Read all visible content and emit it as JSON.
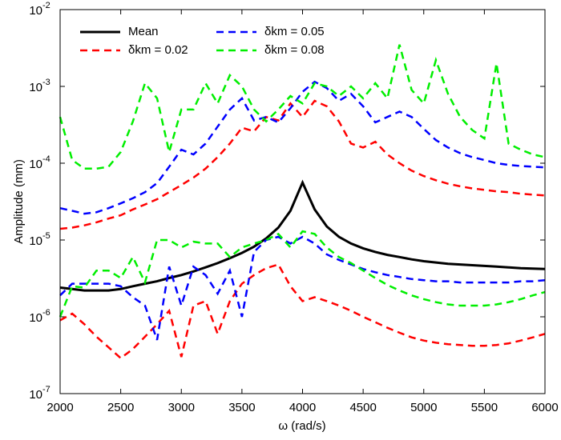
{
  "chart_data": {
    "type": "line",
    "x_label": "ω (rad/s)",
    "y_label": "Amplitude (mm)",
    "log_y": true,
    "xlim": [
      2000,
      6000
    ],
    "xticks": [
      2000,
      2500,
      3000,
      3500,
      4000,
      4500,
      5000,
      5500,
      6000
    ],
    "ylim": [
      1e-07,
      0.01
    ],
    "yticks": [
      {
        "value": 1e-07,
        "label": "10",
        "exponent": "-7"
      },
      {
        "value": 1e-06,
        "label": "10",
        "exponent": "-6"
      },
      {
        "value": 1e-05,
        "label": "10",
        "exponent": "-5"
      },
      {
        "value": 0.0001,
        "label": "10",
        "exponent": "-4"
      },
      {
        "value": 0.001,
        "label": "10",
        "exponent": "-3"
      },
      {
        "value": 0.01,
        "label": "10",
        "exponent": "-2"
      }
    ],
    "x": [
      2000,
      2100,
      2200,
      2300,
      2400,
      2500,
      2600,
      2700,
      2800,
      2900,
      3000,
      3100,
      3200,
      3300,
      3400,
      3500,
      3600,
      3700,
      3800,
      3900,
      4000,
      4100,
      4200,
      4300,
      4400,
      4500,
      4600,
      4700,
      4800,
      4900,
      5000,
      5100,
      5200,
      5300,
      5400,
      5500,
      5600,
      5700,
      5800,
      5900,
      6000
    ],
    "series": [
      {
        "name": "Mean",
        "color": "#000000",
        "dashed": false,
        "values": [
          2.4e-06,
          2.3e-06,
          2.2e-06,
          2.2e-06,
          2.2e-06,
          2.3e-06,
          2.5e-06,
          2.7e-06,
          2.9e-06,
          3.2e-06,
          3.5e-06,
          3.9e-06,
          4.4e-06,
          5e-06,
          5.8e-06,
          6.8e-06,
          8.2e-06,
          1.05e-05,
          1.45e-05,
          2.4e-05,
          5.6e-05,
          2.5e-05,
          1.5e-05,
          1.1e-05,
          9e-06,
          7.8e-06,
          7e-06,
          6.4e-06,
          6e-06,
          5.6e-06,
          5.3e-06,
          5.1e-06,
          4.9e-06,
          4.8e-06,
          4.7e-06,
          4.6e-06,
          4.5e-06,
          4.4e-06,
          4.3e-06,
          4.25e-06,
          4.2e-06
        ]
      },
      {
        "name": "δkm = 0.02",
        "color": "#ff0000",
        "dashed": true,
        "values": [
          1.4e-05,
          1.45e-05,
          1.55e-05,
          1.7e-05,
          1.9e-05,
          2.1e-05,
          2.5e-05,
          2.9e-05,
          3.4e-05,
          4.2e-05,
          5.2e-05,
          6.5e-05,
          8.5e-05,
          0.00012,
          0.00018,
          0.00029,
          0.00026,
          0.0004,
          0.00036,
          0.0006,
          0.0004,
          0.00065,
          0.00055,
          0.00035,
          0.00018,
          0.00016,
          0.00019,
          0.00013,
          0.0001,
          8e-05,
          6.8e-05,
          6e-05,
          5.4e-05,
          5e-05,
          4.7e-05,
          4.5e-05,
          4.3e-05,
          4.2e-05,
          4e-05,
          3.9e-05,
          3.8e-05
        ],
        "lower": [
          9e-07,
          1.1e-06,
          8e-07,
          5.5e-07,
          4e-07,
          2.9e-07,
          3.8e-07,
          5.5e-07,
          8e-07,
          1.2e-06,
          3e-07,
          1.4e-06,
          1.6e-06,
          6e-07,
          1.6e-06,
          2.7e-06,
          3.5e-06,
          4.3e-06,
          4.8e-06,
          2.5e-06,
          1.6e-06,
          1.8e-06,
          1.6e-06,
          1.4e-06,
          1.2e-06,
          1e-06,
          8.5e-07,
          7.2e-07,
          6.2e-07,
          5.4e-07,
          4.9e-07,
          4.6e-07,
          4.4e-07,
          4.3e-07,
          4.2e-07,
          4.2e-07,
          4.3e-07,
          4.5e-07,
          4.9e-07,
          5.4e-07,
          6e-07
        ]
      },
      {
        "name": "δkm = 0.05",
        "color": "#0000ff",
        "dashed": true,
        "values": [
          2.6e-05,
          2.4e-05,
          2.2e-05,
          2.3e-05,
          2.6e-05,
          3e-05,
          3.5e-05,
          4.2e-05,
          5.5e-05,
          9e-05,
          0.00015,
          0.00013,
          0.00018,
          0.0003,
          0.0005,
          0.0007,
          0.00036,
          0.0004,
          0.00034,
          0.00052,
          0.00085,
          0.00115,
          0.00095,
          0.00065,
          0.0008,
          0.00055,
          0.00034,
          0.0004,
          0.00047,
          0.0004,
          0.00028,
          0.0002,
          0.00016,
          0.000135,
          0.00012,
          0.00011,
          0.0001,
          9.5e-05,
          9.2e-05,
          9e-05,
          8.8e-05
        ],
        "lower": [
          1.9e-06,
          2.7e-06,
          2.7e-06,
          2.7e-06,
          2.7e-06,
          2.5e-06,
          1.8e-06,
          1.4e-06,
          5e-07,
          4.5e-06,
          1.4e-06,
          4.5e-06,
          3.5e-06,
          2e-06,
          4e-06,
          1e-06,
          7e-06,
          1e-05,
          1.1e-05,
          9e-06,
          1.1e-05,
          9e-06,
          6.5e-06,
          5.5e-06,
          4.8e-06,
          4.2e-06,
          3.8e-06,
          3.5e-06,
          3.3e-06,
          3.1e-06,
          3e-06,
          2.9e-06,
          2.9e-06,
          2.8e-06,
          2.8e-06,
          2.8e-06,
          2.8e-06,
          2.8e-06,
          2.9e-06,
          2.9e-06,
          3e-06
        ]
      },
      {
        "name": "δkm = 0.08",
        "color": "#00ee00",
        "dashed": true,
        "values": [
          0.0004,
          0.00011,
          8.5e-05,
          8.5e-05,
          9e-05,
          0.00014,
          0.00035,
          0.0011,
          0.0007,
          0.00014,
          0.0005,
          0.0005,
          0.0011,
          0.0006,
          0.0014,
          0.001,
          0.0005,
          0.00035,
          0.0005,
          0.00075,
          0.0006,
          0.0011,
          0.001,
          0.00075,
          0.001,
          0.0007,
          0.0011,
          0.0007,
          0.0035,
          0.0009,
          0.0006,
          0.0022,
          0.0008,
          0.0004,
          0.00027,
          0.00021,
          0.002,
          0.00018,
          0.00015,
          0.00013,
          0.00012
        ],
        "lower": [
          1e-06,
          2.5e-06,
          2.4e-06,
          4e-06,
          4e-06,
          3.2e-06,
          6e-06,
          2.8e-06,
          1e-05,
          1e-05,
          8e-06,
          9.5e-06,
          9e-06,
          9e-06,
          6e-06,
          8e-06,
          9e-06,
          1e-05,
          1.2e-05,
          8e-06,
          1.3e-05,
          1.2e-05,
          8e-06,
          6e-06,
          5e-06,
          4e-06,
          3.2e-06,
          2.6e-06,
          2.2e-06,
          1.9e-06,
          1.7e-06,
          1.55e-06,
          1.45e-06,
          1.4e-06,
          1.4e-06,
          1.4e-06,
          1.45e-06,
          1.55e-06,
          1.7e-06,
          1.9e-06,
          2.1e-06
        ]
      }
    ]
  }
}
